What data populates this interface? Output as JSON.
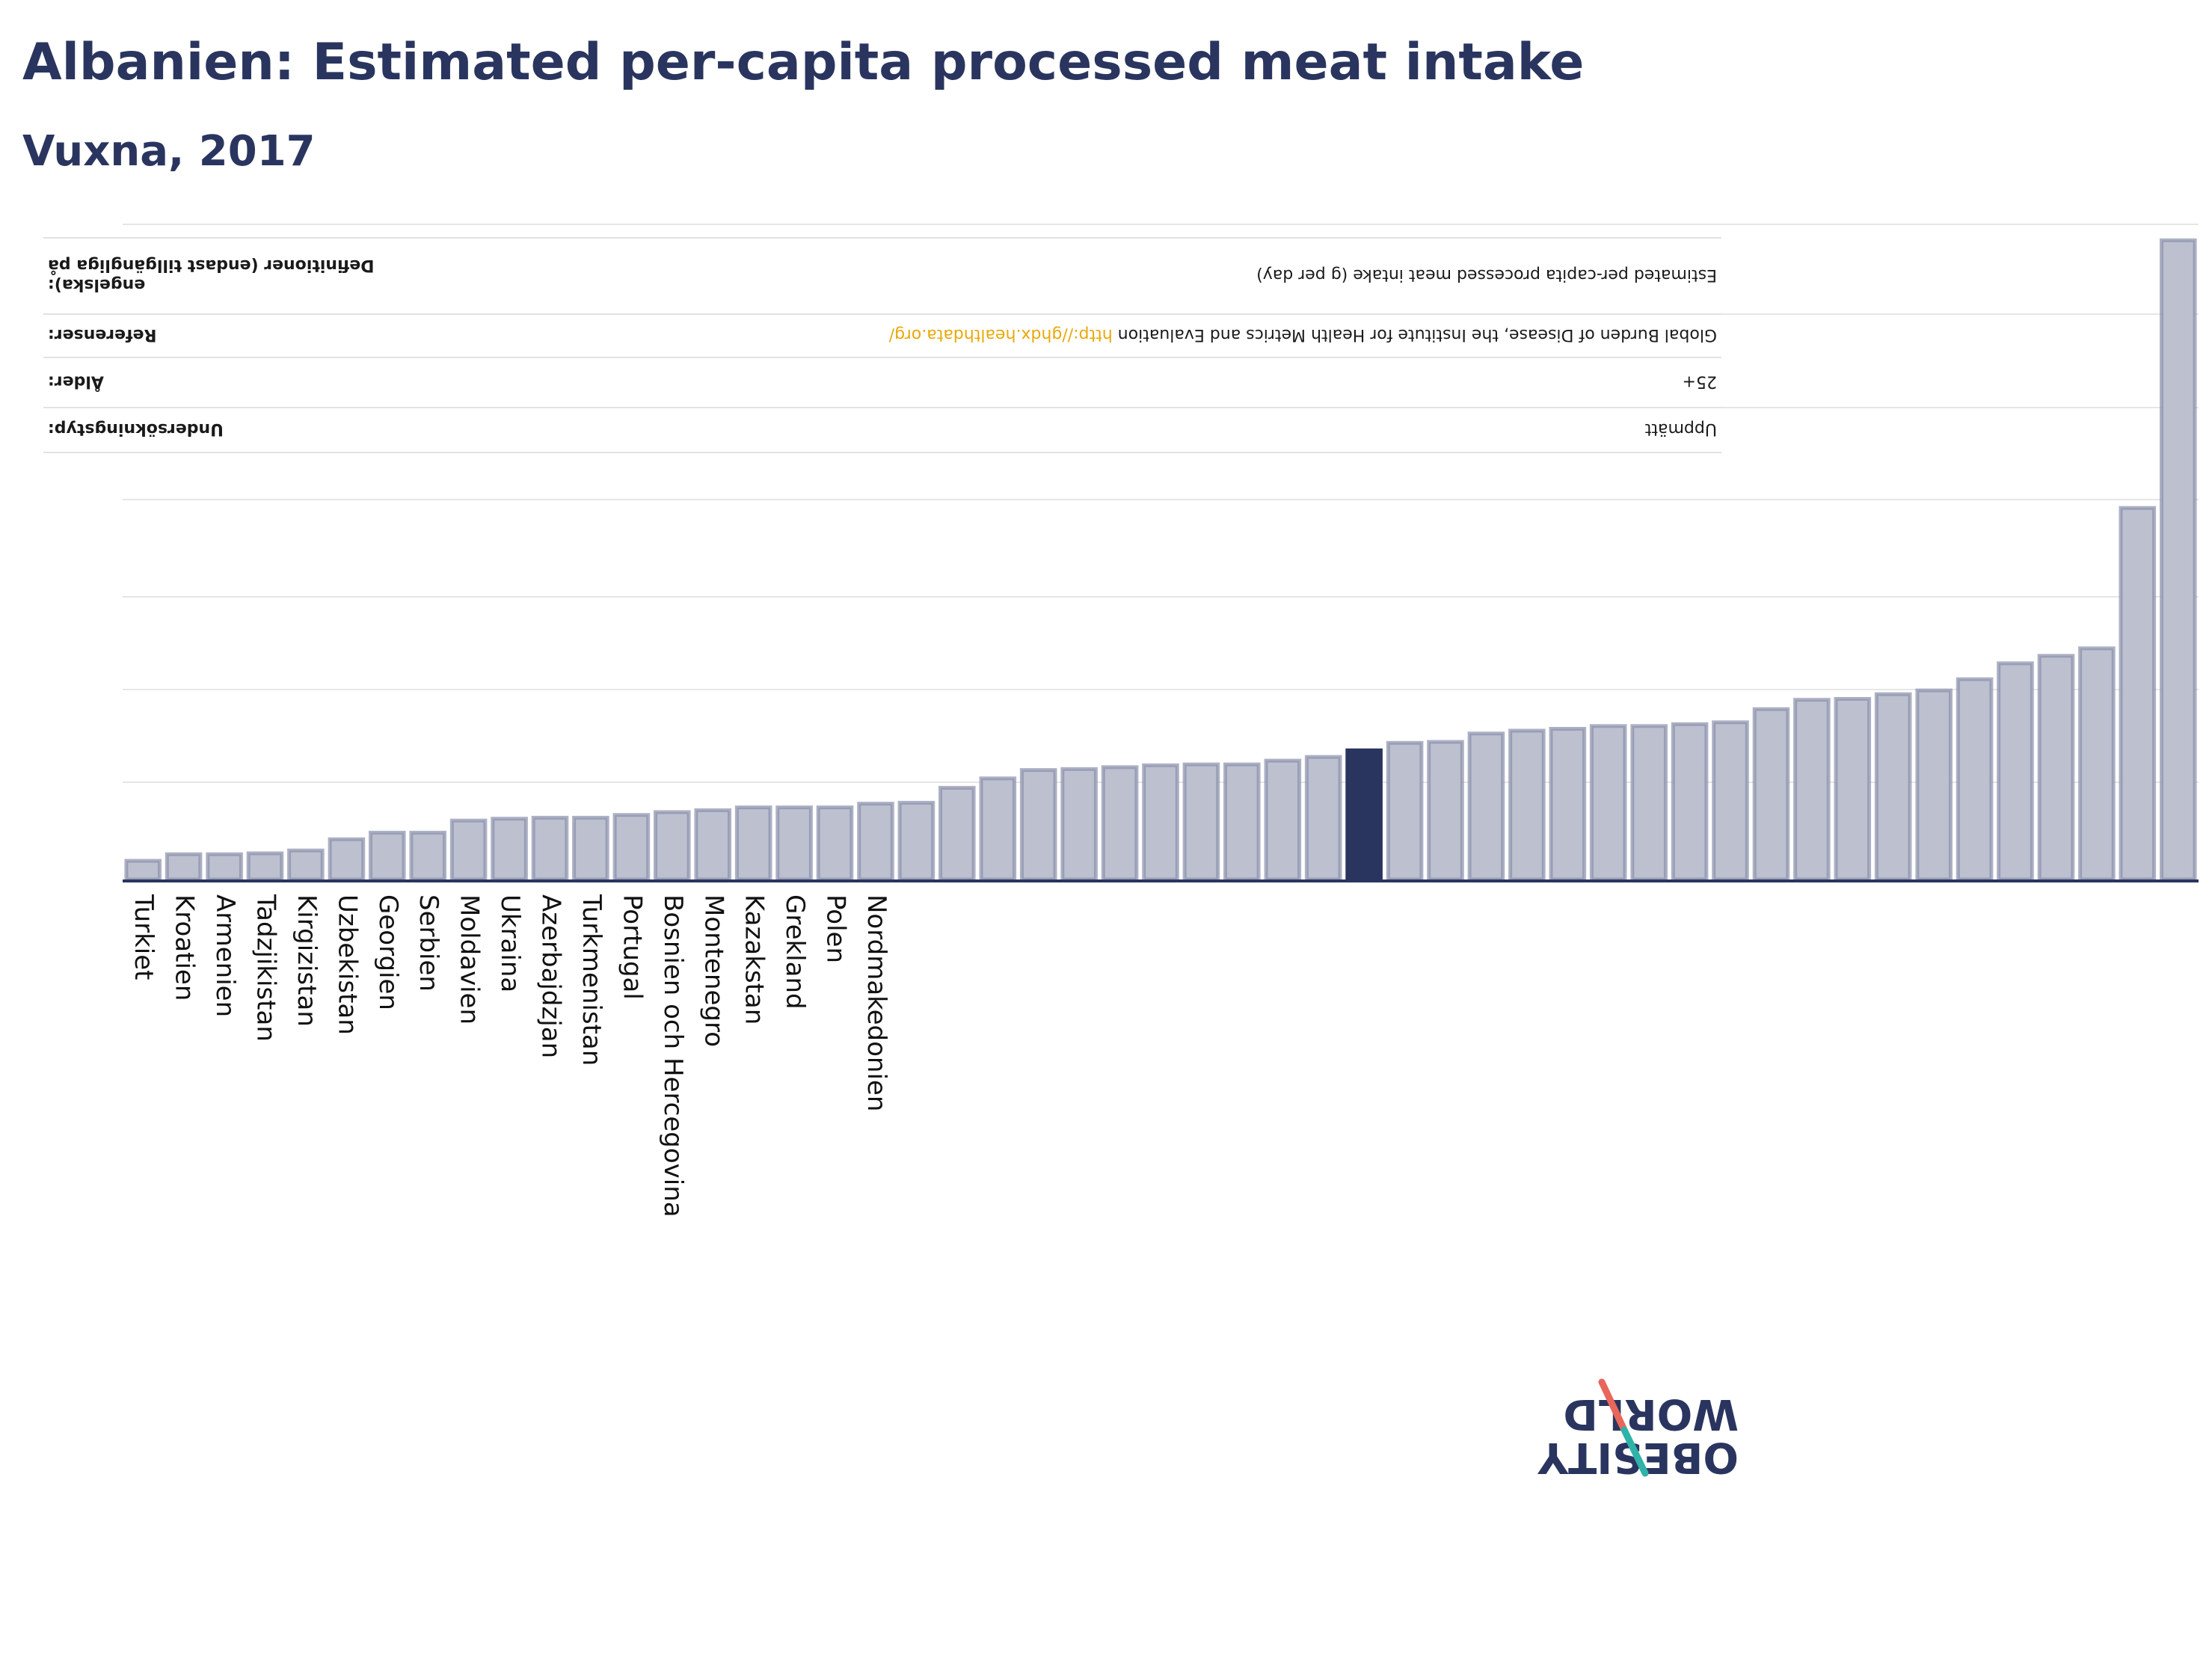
{
  "header": {
    "title": "Albanien: Estimated per-capita processed meat intake",
    "subtitle": "Vuxna, 2017"
  },
  "metadata": [
    {
      "label_lines": [
        "engelska):",
        "Definitioner (endast tillgängliga på"
      ],
      "value": "Estimated per-capita processed meat intake (g per day)",
      "link": ""
    },
    {
      "label_lines": [
        "Referenser:"
      ],
      "value": "Global Burden of Disease, the Institute for Health Metrics and Evaluation ",
      "link": "http://ghdx.healthdata.org/"
    },
    {
      "label_lines": [
        "Ålder:"
      ],
      "value": "25+",
      "link": ""
    },
    {
      "label_lines": [
        "Undersökningstyp:"
      ],
      "value": "Uppmätt",
      "link": ""
    }
  ],
  "logo": {
    "line1": "OBESITY",
    "line2": "WORLD"
  },
  "colors": {
    "bar": "#bcc0cf",
    "bar_stroke": "#8a90ab",
    "highlight": "#2a355f",
    "grid": "#e6e6e6",
    "axis": "#2a355f"
  },
  "chart_data": {
    "type": "bar",
    "title": "Albanien: Estimated per-capita processed meat intake",
    "subtitle": "Vuxna, 2017",
    "xlabel": "",
    "ylabel": "",
    "ylim": [
      0,
      70
    ],
    "grid": true,
    "highlight_index": 30,
    "categories": [
      "Turkiet",
      "Kroatien",
      "Armenien",
      "Tadzjikistan",
      "Kirgizistan",
      "Uzbekistan",
      "Georgien",
      "Serbien",
      "Moldavien",
      "Ukraina",
      "Azerbajdzjan",
      "Turkmenistan",
      "Portugal",
      "Bosnien och Hercegovina",
      "Montenegro",
      "Kazakstan",
      "Grekland",
      "Polen",
      "Nordmakedonien",
      "",
      "",
      "",
      "",
      "",
      "",
      "",
      "",
      "",
      "",
      "",
      "",
      "",
      "",
      "",
      "",
      "",
      "",
      "",
      "",
      "",
      "",
      "",
      "",
      "",
      "",
      "",
      "",
      "",
      "",
      "",
      ""
    ],
    "values": [
      2.0,
      2.7,
      2.7,
      2.8,
      3.1,
      4.3,
      5.0,
      5.0,
      6.3,
      6.5,
      6.6,
      6.6,
      6.9,
      7.2,
      7.4,
      7.7,
      7.7,
      7.7,
      8.1,
      8.2,
      9.8,
      10.8,
      11.7,
      11.8,
      12.0,
      12.2,
      12.3,
      12.3,
      12.7,
      13.1,
      13.8,
      14.6,
      14.7,
      15.6,
      15.9,
      16.1,
      16.4,
      16.4,
      16.6,
      16.8,
      18.2,
      19.2,
      19.3,
      19.8,
      20.2,
      21.4,
      23.1,
      23.9,
      24.7,
      39.7,
      68.3
    ]
  }
}
